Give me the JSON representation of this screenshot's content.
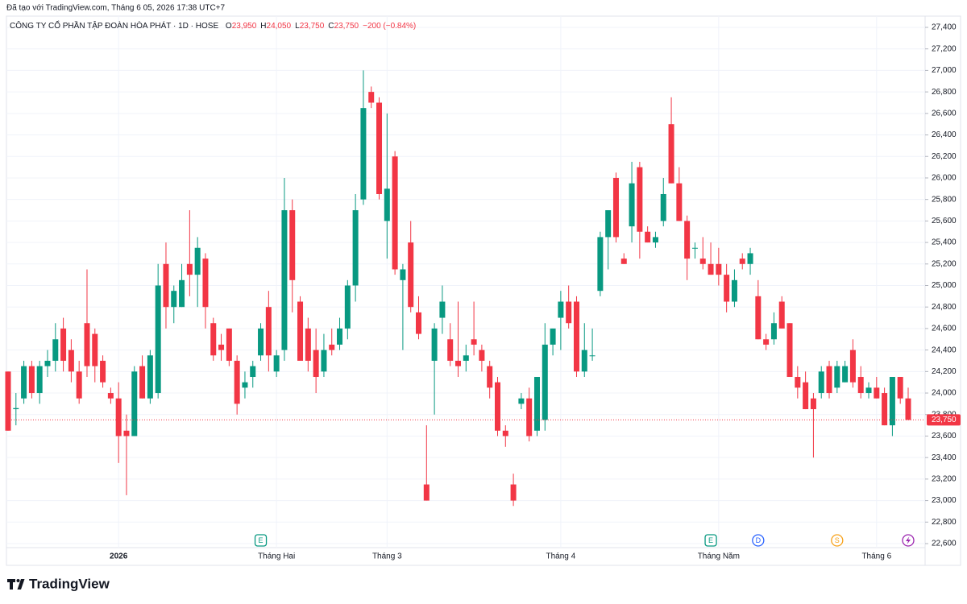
{
  "chart_data": {
    "type": "candlestick",
    "caption": "Đã tạo với TradingView.com, Tháng 6 05, 2026 17:38 UTC+7",
    "symbol": "CÔNG TY CỔ PHẦN TẬP ĐOÀN HÒA PHÁT · 1D · HOSE",
    "ohlc_legend": [
      {
        "key": "O",
        "value": "23,950"
      },
      {
        "key": "H",
        "value": "24,050"
      },
      {
        "key": "L",
        "value": "23,750"
      },
      {
        "key": "C",
        "value": "23,750"
      }
    ],
    "change": "−200 (−0.84%)",
    "brand": "TradingView",
    "up_color": "#089981",
    "down_color": "#f23645",
    "grid": true,
    "categories": [
      null,
      null,
      null,
      null,
      null,
      null,
      null,
      null,
      null,
      null,
      null,
      null,
      null,
      null,
      "2026",
      null,
      null,
      null,
      null,
      null,
      null,
      null,
      null,
      null,
      null,
      null,
      null,
      null,
      null,
      null,
      null,
      null,
      null,
      null,
      "Tháng Hai",
      null,
      null,
      null,
      null,
      null,
      null,
      null,
      null,
      null,
      null,
      null,
      null,
      null,
      "Tháng 3",
      null,
      null,
      null,
      null,
      null,
      null,
      null,
      null,
      null,
      null,
      null,
      null,
      null,
      null,
      null,
      null,
      null,
      null,
      null,
      null,
      null,
      "Tháng 4",
      null,
      null,
      null,
      null,
      null,
      null,
      null,
      null,
      null,
      null,
      null,
      null,
      null,
      null,
      null,
      null,
      null,
      null,
      null,
      "Tháng Năm",
      null,
      null,
      null,
      null,
      null,
      null,
      null,
      null,
      null,
      null,
      null,
      null,
      null,
      null,
      null,
      null,
      null,
      null,
      null,
      "Tháng 6",
      null,
      null,
      null,
      null
    ],
    "open": [
      24200,
      23850,
      23950,
      24250,
      24000,
      24250,
      24300,
      24600,
      24400,
      24200,
      24650,
      24550,
      24300,
      24000,
      23950,
      23650,
      23600,
      24250,
      23950,
      24000,
      25200,
      24800,
      24800,
      25200,
      25100,
      25250,
      24650,
      24450,
      24600,
      24300,
      24050,
      24150,
      24350,
      24800,
      24200,
      24400,
      25700,
      24850,
      24600,
      24400,
      24200,
      24450,
      24450,
      24600,
      25000,
      25800,
      26800,
      26700,
      25600,
      26200,
      25050,
      25400,
      24750,
      23150,
      24300,
      24700,
      24500,
      24300,
      24300,
      24500,
      24400,
      24250,
      24100,
      23650,
      23150,
      23900,
      23950,
      23650,
      23750,
      24450,
      24700,
      24850,
      24850,
      24200,
      24350,
      24950,
      25450,
      26000,
      25250,
      25550,
      26100,
      25500,
      25400,
      25600,
      26500,
      25950,
      25600,
      25350,
      25250,
      25200,
      25200,
      25100,
      24850,
      25250,
      25200,
      24900,
      24500,
      24500,
      24850,
      24650,
      24150,
      24100,
      23950,
      24000,
      24250,
      24050,
      24100,
      24400,
      24150,
      24000,
      24050,
      24000,
      23700,
      24150,
      23950
    ],
    "high": [
      24200,
      24000,
      24300,
      24300,
      24300,
      24400,
      24650,
      24700,
      24500,
      24300,
      25150,
      24600,
      24350,
      24050,
      24100,
      23800,
      24250,
      24350,
      24400,
      25200,
      25400,
      25000,
      25200,
      25700,
      25450,
      25300,
      24700,
      24550,
      24600,
      24350,
      24200,
      24300,
      24650,
      24950,
      24400,
      26000,
      25800,
      24900,
      24700,
      24600,
      24550,
      24600,
      24700,
      25050,
      25850,
      27000,
      26850,
      26750,
      26600,
      26250,
      25200,
      25600,
      24900,
      23700,
      24650,
      25000,
      24650,
      24850,
      24450,
      24850,
      24450,
      24300,
      24150,
      23700,
      23250,
      24000,
      24050,
      24150,
      24650,
      24600,
      24950,
      25000,
      24900,
      24650,
      24600,
      25500,
      25700,
      26050,
      25300,
      26150,
      26150,
      25550,
      25500,
      26000,
      26750,
      26100,
      25650,
      25400,
      25450,
      25400,
      25350,
      25200,
      25150,
      25300,
      25350,
      25050,
      24550,
      24750,
      24900,
      24650,
      24250,
      24200,
      24000,
      24250,
      24300,
      24300,
      24300,
      24500,
      24250,
      24100,
      24150,
      24050,
      24150,
      24150,
      24050
    ],
    "low": [
      23650,
      23700,
      23900,
      23950,
      23900,
      24150,
      24200,
      24200,
      24100,
      23900,
      24150,
      24100,
      24050,
      23900,
      23350,
      23050,
      23600,
      23950,
      23900,
      23950,
      24600,
      24650,
      24800,
      24900,
      24800,
      24600,
      24300,
      24300,
      24250,
      23800,
      23950,
      24050,
      24300,
      24200,
      24150,
      24300,
      24750,
      24300,
      24200,
      24000,
      24150,
      24350,
      24400,
      24500,
      24850,
      25750,
      26650,
      25800,
      25250,
      25100,
      24400,
      24750,
      24500,
      23000,
      23800,
      24550,
      24250,
      24150,
      24200,
      24350,
      24200,
      23950,
      23600,
      23500,
      22950,
      23850,
      23550,
      23600,
      23650,
      24350,
      24400,
      24600,
      24150,
      24150,
      24300,
      24900,
      25150,
      25400,
      25200,
      25400,
      25250,
      25400,
      25350,
      25550,
      25950,
      25600,
      25050,
      25250,
      25150,
      25100,
      25000,
      24750,
      24800,
      25150,
      25100,
      24500,
      24400,
      24450,
      24600,
      24150,
      23950,
      23850,
      23400,
      23950,
      23950,
      24000,
      24100,
      24050,
      23950,
      23950,
      23950,
      23700,
      23600,
      23900,
      23750
    ],
    "close": [
      23650,
      23860,
      24250,
      24000,
      24250,
      24300,
      24500,
      24300,
      24200,
      23950,
      24250,
      24250,
      24100,
      23950,
      23600,
      23600,
      24200,
      23950,
      24350,
      25000,
      24800,
      24950,
      25050,
      25100,
      25350,
      24800,
      24350,
      24400,
      24300,
      23900,
      24100,
      24250,
      24600,
      24350,
      24350,
      25700,
      25050,
      24300,
      24300,
      24150,
      24400,
      24400,
      24600,
      25000,
      25700,
      26650,
      26700,
      25850,
      25900,
      25150,
      25150,
      24800,
      24550,
      23000,
      24600,
      24850,
      24300,
      24250,
      24350,
      24450,
      24300,
      24050,
      23650,
      23600,
      23000,
      23950,
      23600,
      24150,
      24450,
      24600,
      24850,
      24650,
      24200,
      24400,
      24350,
      25450,
      25700,
      25450,
      25200,
      25950,
      25500,
      25400,
      25450,
      25850,
      25950,
      25600,
      25250,
      25350,
      25200,
      25100,
      25100,
      24850,
      25050,
      25200,
      25300,
      24500,
      24450,
      24650,
      24600,
      24150,
      24050,
      23850,
      23850,
      24200,
      24000,
      24250,
      24250,
      24100,
      24000,
      24050,
      23950,
      23700,
      24150,
      23950,
      23750
    ],
    "ylim": [
      22500,
      27500
    ],
    "yticks": [
      {
        "value": 22600,
        "label": "22,600"
      },
      {
        "value": 22800,
        "label": "22,800"
      },
      {
        "value": 23000,
        "label": "23,000"
      },
      {
        "value": 23200,
        "label": "23,200"
      },
      {
        "value": 23400,
        "label": "23,400"
      },
      {
        "value": 23600,
        "label": "23,600"
      },
      {
        "value": 23800,
        "label": "23,800"
      },
      {
        "value": 24000,
        "label": "24,000"
      },
      {
        "value": 24200,
        "label": "24,200"
      },
      {
        "value": 24400,
        "label": "24,400"
      },
      {
        "value": 24600,
        "label": "24,600"
      },
      {
        "value": 24800,
        "label": "24,800"
      },
      {
        "value": 25000,
        "label": "25,000"
      },
      {
        "value": 25200,
        "label": "25,200"
      },
      {
        "value": 25400,
        "label": "25,400"
      },
      {
        "value": 25600,
        "label": "25,600"
      },
      {
        "value": 25800,
        "label": "25,800"
      },
      {
        "value": 26000,
        "label": "26,000"
      },
      {
        "value": 26200,
        "label": "26,200"
      },
      {
        "value": 26400,
        "label": "26,400"
      },
      {
        "value": 26600,
        "label": "26,600"
      },
      {
        "value": 26800,
        "label": "26,800"
      },
      {
        "value": 27000,
        "label": "27,000"
      },
      {
        "value": 27200,
        "label": "27,200"
      },
      {
        "value": 27400,
        "label": "27,400"
      }
    ],
    "last_price": {
      "value": 23750,
      "label": "23,750"
    },
    "events": [
      {
        "index": 32,
        "label": "E",
        "color": "#089981"
      },
      {
        "index": 89,
        "label": "E",
        "color": "#089981"
      },
      {
        "index": 95,
        "label": "D",
        "color": "#2962ff"
      },
      {
        "index": 105,
        "label": "S",
        "color": "#f7a21b"
      },
      {
        "index": 114,
        "icon": "lightning",
        "color": "#9c27b0"
      }
    ]
  }
}
